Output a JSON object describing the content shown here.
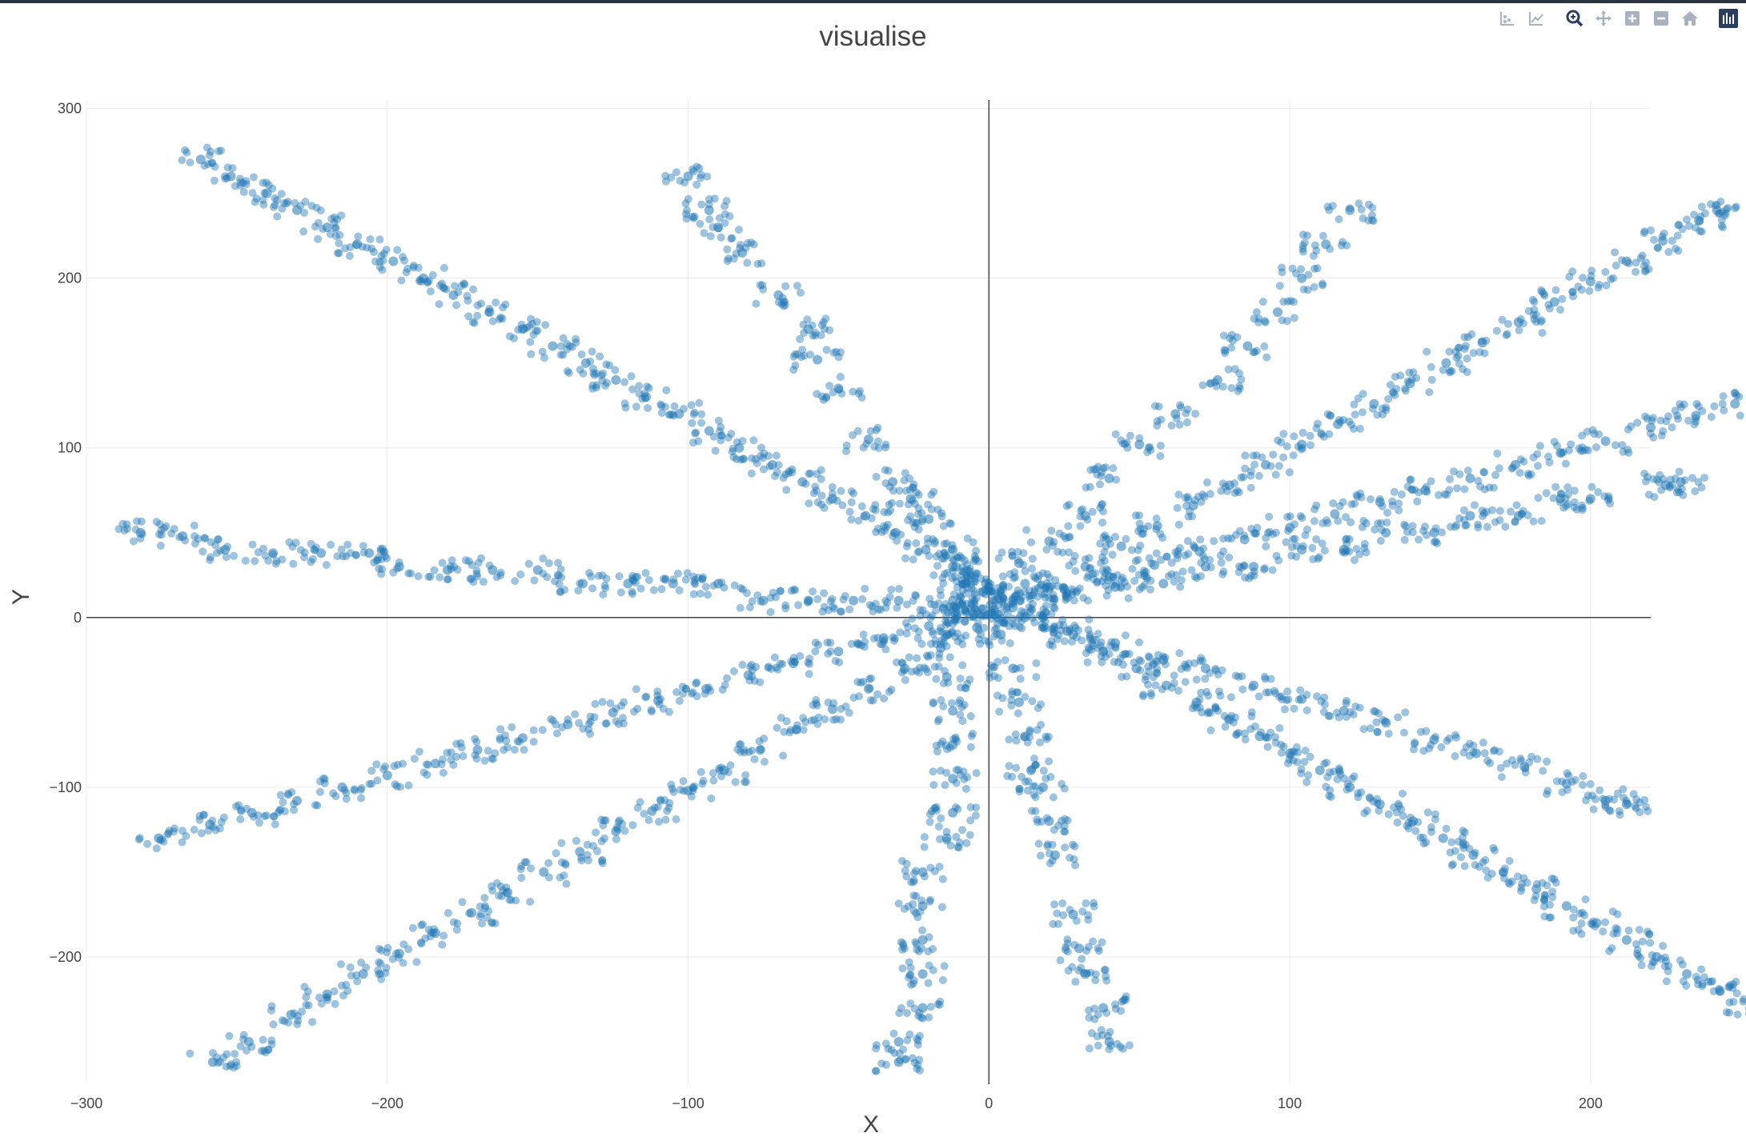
{
  "toolbar": {
    "icons": [
      "compare-data-icon",
      "closest-data-icon",
      "zoom-icon",
      "pan-icon",
      "zoom-in-icon",
      "zoom-out-icon",
      "reset-axes-icon",
      "plotly-logo-icon"
    ],
    "accent": "#2a3f5f",
    "muted": "#a8b3bf"
  },
  "chart_data": {
    "type": "scatter",
    "title": "visualise",
    "xlabel": "X",
    "ylabel": "Y",
    "xlim": [
      -300,
      220
    ],
    "ylim": [
      -275,
      305
    ],
    "xticks": [
      -300,
      -200,
      -100,
      0,
      100,
      200
    ],
    "yticks": [
      -200,
      -100,
      0,
      100,
      200,
      300
    ],
    "xtick_labels": [
      "−300",
      "−200",
      "−100",
      "0",
      "100",
      "200"
    ],
    "ytick_labels": [
      "−200",
      "−100",
      "0",
      "100",
      "200",
      "300"
    ],
    "grid": true,
    "zero_lines": true,
    "marker_color": "#1f77b4",
    "marker_opacity": 0.55,
    "series": [
      {
        "points": [
          [
            -262,
            270
          ],
          [
            -252,
            260
          ],
          [
            -240,
            250
          ],
          [
            -230,
            240
          ],
          [
            -220,
            230
          ],
          [
            -210,
            220
          ],
          [
            -198,
            210
          ],
          [
            -188,
            200
          ],
          [
            -178,
            190
          ],
          [
            -166,
            180
          ],
          [
            -155,
            170
          ],
          [
            -145,
            160
          ],
          [
            -134,
            150
          ],
          [
            -124,
            140
          ],
          [
            -114,
            130
          ],
          [
            -103,
            120
          ],
          [
            -93,
            110
          ],
          [
            -83,
            100
          ],
          [
            -72,
            90
          ],
          [
            -62,
            80
          ],
          [
            -52,
            70
          ],
          [
            -41,
            60
          ],
          [
            -31,
            50
          ],
          [
            -21,
            40
          ],
          [
            -11,
            30
          ],
          [
            -1,
            20
          ],
          [
            8,
            10
          ],
          [
            18,
            0
          ],
          [
            28,
            -10
          ],
          [
            38,
            -20
          ],
          [
            49,
            -30
          ],
          [
            59,
            -40
          ],
          [
            69,
            -50
          ],
          [
            80,
            -60
          ],
          [
            90,
            -70
          ],
          [
            100,
            -80
          ],
          [
            110,
            -90
          ],
          [
            120,
            -100
          ],
          [
            130,
            -110
          ],
          [
            141,
            -120
          ],
          [
            151,
            -130
          ],
          [
            161,
            -140
          ],
          [
            171,
            -150
          ],
          [
            182,
            -160
          ],
          [
            192,
            -170
          ],
          [
            202,
            -180
          ],
          [
            212,
            -190
          ],
          [
            222,
            -200
          ],
          [
            232,
            -210
          ],
          [
            243,
            -220
          ],
          [
            253,
            -230
          ]
        ]
      },
      {
        "points": [
          [
            -276,
            -130
          ],
          [
            -259,
            -122
          ],
          [
            -245,
            -115
          ],
          [
            -230,
            -108
          ],
          [
            -215,
            -100
          ],
          [
            -200,
            -93
          ],
          [
            -184,
            -86
          ],
          [
            -170,
            -78
          ],
          [
            -155,
            -71
          ],
          [
            -140,
            -63
          ],
          [
            -125,
            -56
          ],
          [
            -110,
            -49
          ],
          [
            -94,
            -42
          ],
          [
            -80,
            -34
          ],
          [
            -65,
            -27
          ],
          [
            -50,
            -20
          ],
          [
            -35,
            -12
          ],
          [
            -20,
            -5
          ],
          [
            -5,
            2
          ],
          [
            10,
            10
          ],
          [
            25,
            17
          ],
          [
            40,
            24
          ],
          [
            55,
            31
          ],
          [
            70,
            39
          ],
          [
            85,
            46
          ],
          [
            100,
            53
          ],
          [
            115,
            61
          ],
          [
            130,
            68
          ],
          [
            145,
            75
          ],
          [
            160,
            82
          ],
          [
            175,
            90
          ],
          [
            190,
            97
          ],
          [
            205,
            104
          ],
          [
            220,
            112
          ],
          [
            235,
            119
          ],
          [
            248,
            126
          ]
        ]
      },
      {
        "points": [
          [
            -258,
            -262
          ],
          [
            -246,
            -250
          ],
          [
            -232,
            -234
          ],
          [
            -220,
            -222
          ],
          [
            -208,
            -210
          ],
          [
            -196,
            -198
          ],
          [
            -184,
            -186
          ],
          [
            -172,
            -174
          ],
          [
            -160,
            -162
          ],
          [
            -148,
            -150
          ],
          [
            -136,
            -138
          ],
          [
            -124,
            -126
          ],
          [
            -112,
            -114
          ],
          [
            -100,
            -102
          ],
          [
            -88,
            -90
          ],
          [
            -76,
            -78
          ],
          [
            -64,
            -66
          ],
          [
            -52,
            -54
          ],
          [
            -40,
            -42
          ],
          [
            -28,
            -30
          ],
          [
            -16,
            -18
          ],
          [
            -4,
            -6
          ],
          [
            8,
            6
          ],
          [
            20,
            18
          ],
          [
            32,
            30
          ],
          [
            44,
            42
          ],
          [
            56,
            54
          ],
          [
            68,
            66
          ],
          [
            80,
            78
          ],
          [
            92,
            90
          ],
          [
            104,
            102
          ],
          [
            116,
            114
          ],
          [
            128,
            126
          ],
          [
            140,
            138
          ],
          [
            152,
            150
          ],
          [
            164,
            162
          ],
          [
            176,
            174
          ],
          [
            188,
            186
          ],
          [
            200,
            198
          ],
          [
            212,
            210
          ],
          [
            224,
            222
          ],
          [
            236,
            234
          ],
          [
            242,
            240
          ]
        ]
      },
      {
        "points": [
          [
            -282,
            50
          ],
          [
            -268,
            48
          ],
          [
            -254,
            40
          ],
          [
            -238,
            38
          ],
          [
            -222,
            38
          ],
          [
            -206,
            38
          ],
          [
            -196,
            30
          ],
          [
            -180,
            28
          ],
          [
            -165,
            28
          ],
          [
            -150,
            28
          ],
          [
            -135,
            20
          ],
          [
            -120,
            20
          ],
          [
            -105,
            20
          ],
          [
            -90,
            20
          ],
          [
            -75,
            10
          ],
          [
            -60,
            10
          ],
          [
            -45,
            10
          ],
          [
            -30,
            10
          ],
          [
            -15,
            5
          ],
          [
            0,
            2
          ],
          [
            12,
            0
          ],
          [
            26,
            -8
          ],
          [
            42,
            -15
          ],
          [
            58,
            -25
          ],
          [
            72,
            -30
          ],
          [
            88,
            -40
          ],
          [
            104,
            -48
          ],
          [
            118,
            -55
          ],
          [
            132,
            -62
          ],
          [
            148,
            -72
          ],
          [
            162,
            -80
          ],
          [
            178,
            -88
          ],
          [
            192,
            -98
          ],
          [
            205,
            -108
          ],
          [
            212,
            -110
          ]
        ]
      },
      {
        "points": [
          [
            -2,
            15
          ],
          [
            12,
            20
          ],
          [
            26,
            12
          ],
          [
            42,
            18
          ],
          [
            58,
            20
          ],
          [
            72,
            30
          ],
          [
            88,
            30
          ],
          [
            104,
            40
          ],
          [
            118,
            40
          ],
          [
            132,
            50
          ],
          [
            148,
            50
          ],
          [
            160,
            60
          ],
          [
            176,
            60
          ],
          [
            190,
            70
          ],
          [
            200,
            70
          ],
          [
            225,
            78
          ],
          [
            230,
            80
          ]
        ]
      },
      {
        "points": [
          [
            -100,
            260
          ],
          [
            -93,
            240
          ],
          [
            -90,
            230
          ],
          [
            -82,
            215
          ],
          [
            -70,
            190
          ],
          [
            -60,
            170
          ],
          [
            -57,
            152
          ],
          [
            -50,
            135
          ],
          [
            -40,
            105
          ],
          [
            -32,
            80
          ],
          [
            -26,
            70
          ],
          [
            -20,
            58
          ],
          [
            -12,
            40
          ],
          [
            -8,
            20
          ],
          [
            -2,
            5
          ],
          [
            4,
            -10
          ],
          [
            8,
            -30
          ],
          [
            10,
            -50
          ],
          [
            12,
            -70
          ],
          [
            14,
            -90
          ],
          [
            18,
            -100
          ],
          [
            20,
            -120
          ],
          [
            22,
            -140
          ],
          [
            28,
            -175
          ],
          [
            30,
            -195
          ],
          [
            32,
            -210
          ],
          [
            38,
            -230
          ],
          [
            40,
            -250
          ]
        ]
      },
      {
        "points": [
          [
            120,
            240
          ],
          [
            112,
            220
          ],
          [
            104,
            200
          ],
          [
            96,
            180
          ],
          [
            86,
            160
          ],
          [
            76,
            140
          ],
          [
            62,
            120
          ],
          [
            50,
            102
          ],
          [
            40,
            82
          ],
          [
            32,
            60
          ],
          [
            20,
            45
          ],
          [
            10,
            32
          ],
          [
            0,
            18
          ]
        ]
      },
      {
        "points": [
          [
            -12,
            30
          ],
          [
            -12,
            10
          ],
          [
            -14,
            -10
          ],
          [
            -14,
            -35
          ],
          [
            -12,
            -55
          ],
          [
            -12,
            -75
          ],
          [
            -12,
            -95
          ],
          [
            -12,
            -115
          ],
          [
            -14,
            -130
          ],
          [
            -22,
            -150
          ],
          [
            -22,
            -170
          ],
          [
            -22,
            -190
          ],
          [
            -22,
            -210
          ],
          [
            -22,
            -230
          ],
          [
            -30,
            -250
          ],
          [
            -30,
            -262
          ]
        ]
      }
    ]
  }
}
